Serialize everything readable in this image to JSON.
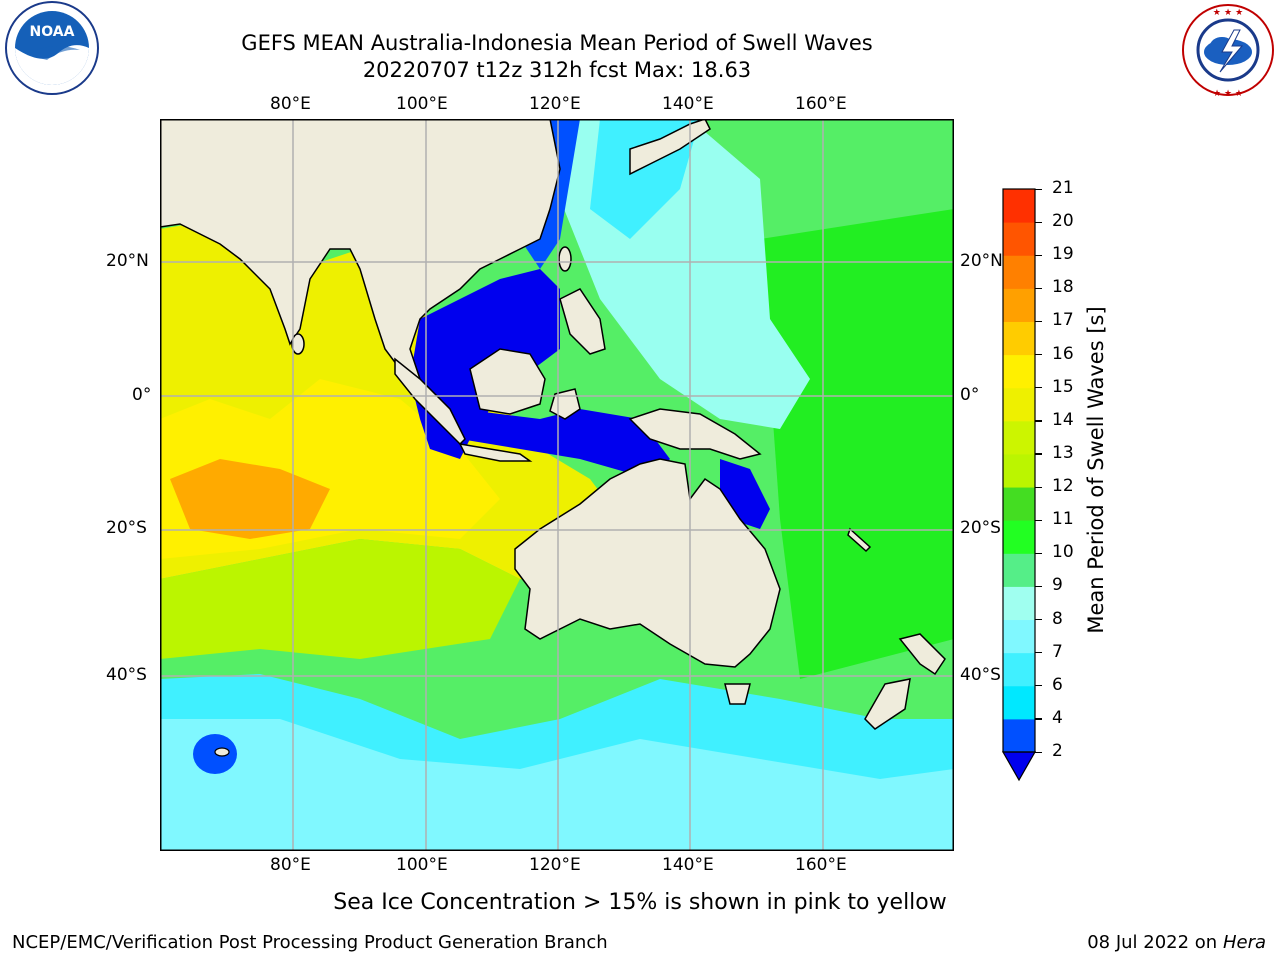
{
  "header": {
    "title_line1": "GEFS MEAN Australia-Indonesia Mean Period of Swell Waves",
    "title_line2": "20220707 t12z 312h fcst   Max: 18.63"
  },
  "logos": {
    "left_org": "NATIONAL OCEANIC AND ATMOSPHERIC ADMINISTRATION",
    "left_badge": "NOAA",
    "left_bottom": "U.S. DEPARTMENT OF COMMERCE",
    "right_org": "NATIONAL WEATHER SERVICE"
  },
  "map": {
    "lon_labels": [
      "80°E",
      "100°E",
      "120°E",
      "140°E",
      "160°E"
    ],
    "lat_labels": [
      "20°N",
      "0°",
      "20°S",
      "40°S"
    ],
    "ocean_color": "#55ee66",
    "land_color": "#efecdc",
    "grid_color": "#b0b0b0"
  },
  "colorbar": {
    "label": "Mean Period of Swell Waves [s]",
    "ticks": [
      "2",
      "4",
      "6",
      "7",
      "8",
      "9",
      "10",
      "11",
      "12",
      "13",
      "14",
      "15",
      "16",
      "17",
      "18",
      "19",
      "20",
      "21"
    ],
    "colors": [
      "#0050ff",
      "#00e8ff",
      "#40f0ff",
      "#80f8ff",
      "#a0fff0",
      "#55ee88",
      "#22ff22",
      "#44dd22",
      "#bbf500",
      "#ccf500",
      "#eef000",
      "#fff000",
      "#ffcc00",
      "#ffa000",
      "#ff8000",
      "#ff5500",
      "#ff3000",
      "#ff0000"
    ],
    "under_color": "#0000ee"
  },
  "caption": "Sea Ice Concentration > 15% is shown in pink to yellow",
  "footer": {
    "left": "NCEP/EMC/Verification Post Processing Product Generation Branch",
    "right_date": "08 Jul 2022 on ",
    "right_host": "Hera"
  }
}
